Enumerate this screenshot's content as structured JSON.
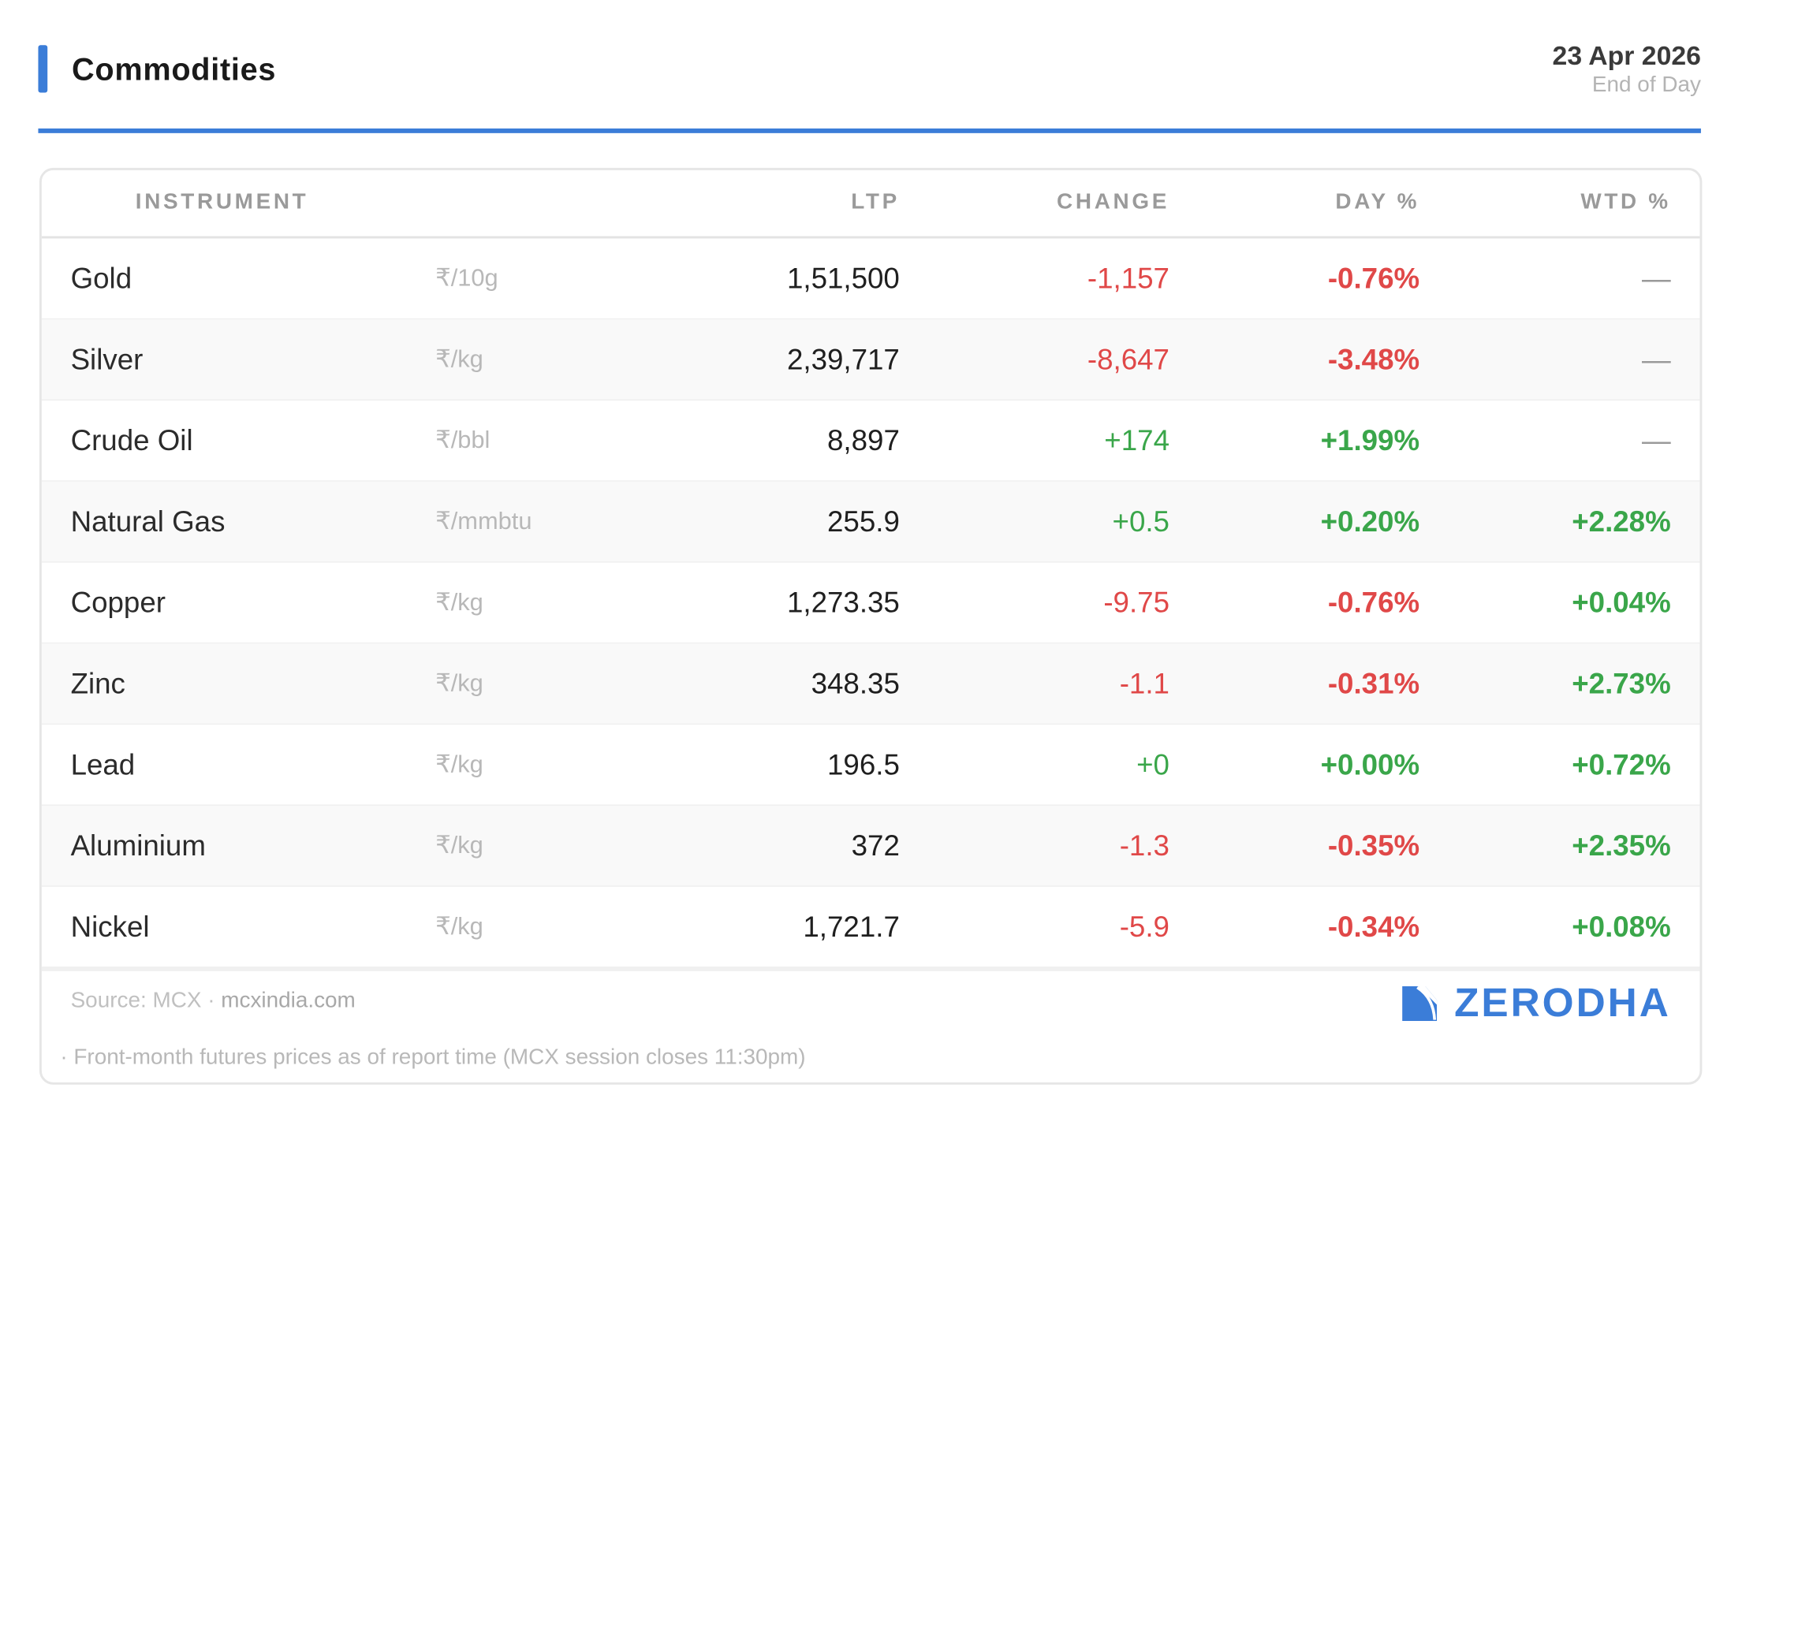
{
  "header": {
    "title": "Commodities",
    "date": "23 Apr 2026",
    "subtitle": "End of Day"
  },
  "colors": {
    "accent": "#3b7dd8",
    "negative": "#e04848",
    "positive": "#3aa64a"
  },
  "table": {
    "columns": {
      "instrument": "INSTRUMENT",
      "ltp": "LTP",
      "change": "CHANGE",
      "day": "DAY %",
      "wtd": "WTD %"
    },
    "rows": [
      {
        "name": "Gold",
        "unit": "₹/10g",
        "ltp": "1,51,500",
        "change": "-1,157",
        "day": "-0.76%",
        "wtd": "—"
      },
      {
        "name": "Silver",
        "unit": "₹/kg",
        "ltp": "2,39,717",
        "change": "-8,647",
        "day": "-3.48%",
        "wtd": "—"
      },
      {
        "name": "Crude Oil",
        "unit": "₹/bbl",
        "ltp": "8,897",
        "change": "+174",
        "day": "+1.99%",
        "wtd": "—"
      },
      {
        "name": "Natural Gas",
        "unit": "₹/mmbtu",
        "ltp": "255.9",
        "change": "+0.5",
        "day": "+0.20%",
        "wtd": "+2.28%"
      },
      {
        "name": "Copper",
        "unit": "₹/kg",
        "ltp": "1,273.35",
        "change": "-9.75",
        "day": "-0.76%",
        "wtd": "+0.04%"
      },
      {
        "name": "Zinc",
        "unit": "₹/kg",
        "ltp": "348.35",
        "change": "-1.1",
        "day": "-0.31%",
        "wtd": "+2.73%"
      },
      {
        "name": "Lead",
        "unit": "₹/kg",
        "ltp": "196.5",
        "change": "+0",
        "day": "+0.00%",
        "wtd": "+0.72%"
      },
      {
        "name": "Aluminium",
        "unit": "₹/kg",
        "ltp": "372",
        "change": "-1.3",
        "day": "-0.35%",
        "wtd": "+2.35%"
      },
      {
        "name": "Nickel",
        "unit": "₹/kg",
        "ltp": "1,721.7",
        "change": "-5.9",
        "day": "-0.34%",
        "wtd": "+0.08%"
      }
    ]
  },
  "footer": {
    "source_prefix": "Source: MCX · ",
    "source_link": "mcxindia.com",
    "note": "· Front-month futures prices as of report time (MCX session closes 11:30pm)",
    "brand": "ZERODHA",
    "brand_icon": "zerodha-logo-mark-icon"
  }
}
